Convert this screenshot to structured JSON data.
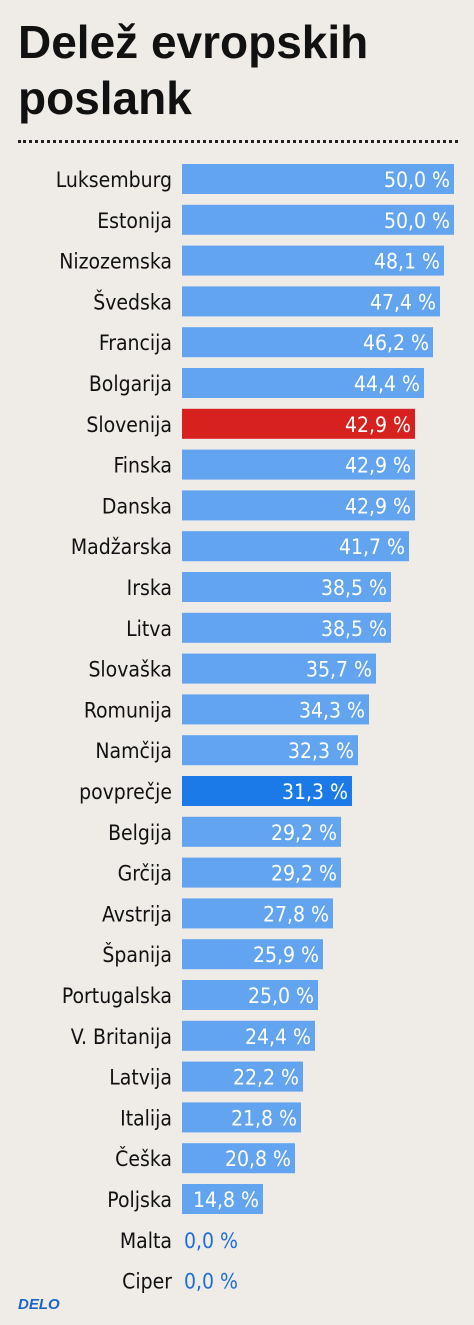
{
  "chart_data": {
    "type": "bar",
    "orientation": "horizontal",
    "title": "Delež evropskih poslank",
    "categories": [
      "Luksemburg",
      "Estonija",
      "Nizozemska",
      "Švedska",
      "Francija",
      "Bolgarija",
      "Slovenija",
      "Finska",
      "Danska",
      "Madžarska",
      "Irska",
      "Litva",
      "Slovaška",
      "Romunija",
      "Namčija",
      "povprečje",
      "Belgija",
      "Grčija",
      "Avstrija",
      "Španija",
      "Portugalska",
      "V. Britanija",
      "Latvija",
      "Italija",
      "Češka",
      "Poljska",
      "Malta",
      "Ciper"
    ],
    "values": [
      50.0,
      50.0,
      48.1,
      47.4,
      46.2,
      44.4,
      42.9,
      42.9,
      42.9,
      41.7,
      38.5,
      38.5,
      35.7,
      34.3,
      32.3,
      31.3,
      29.2,
      29.2,
      27.8,
      25.9,
      25.0,
      24.4,
      22.2,
      21.8,
      20.8,
      14.8,
      0.0,
      0.0
    ],
    "value_labels": [
      "50,0 %",
      "50,0 %",
      "48,1 %",
      "47,4 %",
      "46,2 %",
      "44,4 %",
      "42,9 %",
      "42,9 %",
      "42,9 %",
      "41,7 %",
      "38,5 %",
      "38,5 %",
      "35,7 %",
      "34,3 %",
      "32,3 %",
      "31,3 %",
      "29,2 %",
      "29,2 %",
      "27,8 %",
      "25,9 %",
      "25,0 %",
      "24,4 %",
      "22,2 %",
      "21,8 %",
      "20,8 %",
      "14,8 %",
      "0,0 %",
      "0,0 %"
    ],
    "highlights": {
      "Slovenija": "#d6211e",
      "povprečje": "#1b7ae8"
    },
    "bar_color": "#63a4f0",
    "unit": "%",
    "xlim": [
      0,
      50
    ],
    "grid": false,
    "legend": "none"
  },
  "source_logo": "DELO"
}
